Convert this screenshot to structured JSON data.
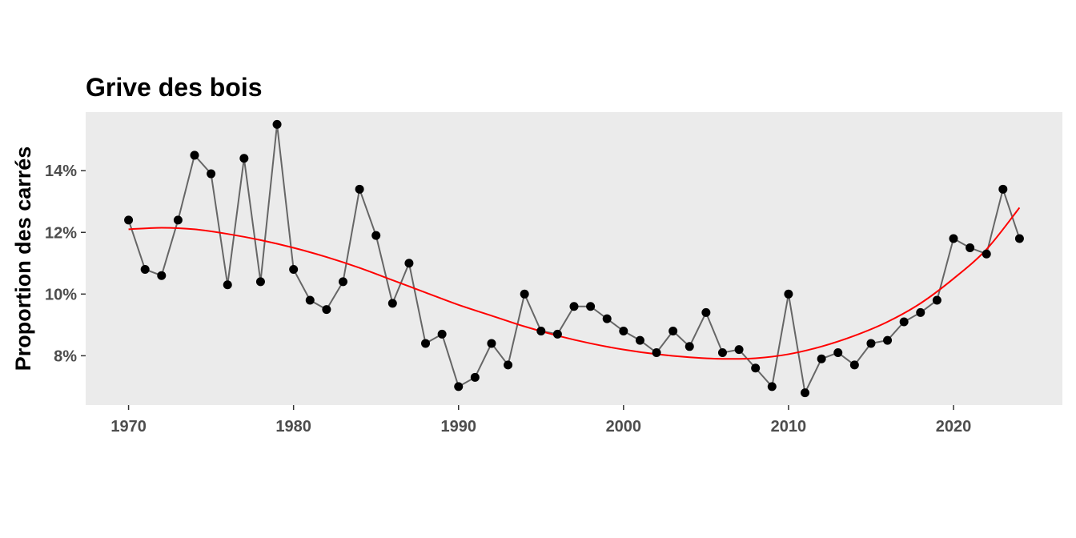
{
  "chart_data": {
    "type": "line",
    "title": "Grive des bois",
    "xlabel": "",
    "ylabel": "Proportion des carrés",
    "xlim": [
      1967.4,
      2026.6
    ],
    "ylim": [
      6.4,
      15.9
    ],
    "x_ticks": [
      1970,
      1980,
      1990,
      2000,
      2010,
      2020
    ],
    "y_ticks": [
      8,
      10,
      12,
      14
    ],
    "y_tick_labels": [
      "8%",
      "10%",
      "12%",
      "14%"
    ],
    "grid": false,
    "legend": "none",
    "series": [
      {
        "kind": "line+points",
        "color": "#666666",
        "point_color": "#000000",
        "x": [
          1970,
          1971,
          1972,
          1973,
          1974,
          1975,
          1976,
          1977,
          1978,
          1979,
          1980,
          1981,
          1982,
          1983,
          1984,
          1985,
          1986,
          1987,
          1988,
          1989,
          1990,
          1991,
          1992,
          1993,
          1994,
          1995,
          1996,
          1997,
          1998,
          1999,
          2000,
          2001,
          2002,
          2003,
          2004,
          2005,
          2006,
          2007,
          2008,
          2009,
          2010,
          2011,
          2012,
          2013,
          2014,
          2015,
          2016,
          2017,
          2018,
          2019,
          2020,
          2021,
          2022,
          2023,
          2024
        ],
        "values": [
          12.4,
          10.8,
          10.6,
          12.4,
          14.5,
          13.9,
          10.3,
          14.4,
          10.4,
          15.5,
          10.8,
          9.8,
          9.5,
          10.4,
          13.4,
          11.9,
          9.7,
          11.0,
          8.4,
          8.7,
          7.0,
          7.3,
          8.4,
          7.7,
          10.0,
          8.8,
          8.7,
          9.6,
          9.6,
          9.2,
          8.8,
          8.5,
          8.1,
          8.8,
          8.3,
          9.4,
          8.1,
          8.2,
          7.6,
          7.0,
          10.0,
          6.8,
          7.9,
          8.1,
          7.7,
          8.4,
          8.5,
          9.1,
          9.4,
          9.8,
          11.8,
          11.5,
          11.3,
          13.4,
          11.8
        ]
      },
      {
        "kind": "smooth",
        "color": "#ff0000",
        "x": [
          1970,
          1972,
          1974,
          1976,
          1978,
          1980,
          1982,
          1984,
          1986,
          1988,
          1990,
          1992,
          1994,
          1996,
          1998,
          2000,
          2002,
          2004,
          2006,
          2008,
          2010,
          2012,
          2014,
          2016,
          2018,
          2020,
          2022,
          2024
        ],
        "values": [
          12.1,
          12.15,
          12.1,
          11.95,
          11.75,
          11.5,
          11.2,
          10.85,
          10.45,
          10.05,
          9.65,
          9.3,
          8.95,
          8.65,
          8.4,
          8.2,
          8.05,
          7.95,
          7.9,
          7.92,
          8.05,
          8.3,
          8.65,
          9.1,
          9.7,
          10.5,
          11.45,
          12.8
        ]
      }
    ]
  }
}
